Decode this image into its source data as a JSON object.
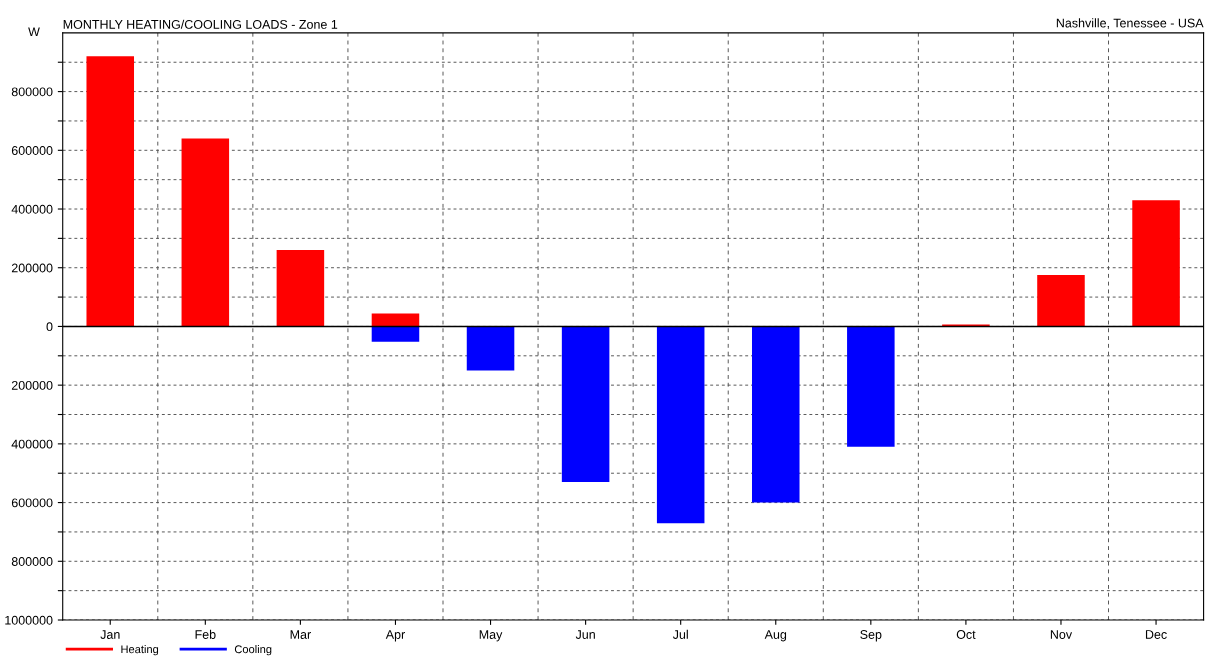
{
  "chart_data": {
    "type": "bar",
    "title": "MONTHLY HEATING/COOLING LOADS - Zone 1",
    "ylabel": "W",
    "annotations": [
      "Nashville, Tenessee - USA"
    ],
    "categories": [
      "Jan",
      "Feb",
      "Mar",
      "Apr",
      "May",
      "Jun",
      "Jul",
      "Aug",
      "Sep",
      "Oct",
      "Nov",
      "Dec"
    ],
    "series": [
      {
        "name": "Heating",
        "color": "#ff0000",
        "values": [
          920000,
          640000,
          260000,
          44000,
          null,
          null,
          null,
          null,
          null,
          7000,
          175000,
          430000
        ]
      },
      {
        "name": "Cooling",
        "color": "#0000ff",
        "values": [
          null,
          null,
          null,
          -52000,
          -150000,
          -530000,
          -670000,
          -600000,
          -410000,
          null,
          null,
          null
        ]
      }
    ],
    "ylim": [
      -1000000,
      1000000
    ],
    "yticks": [
      {
        "value": -1000000,
        "label": "1000000"
      },
      {
        "value": -900000,
        "label": null
      },
      {
        "value": -800000,
        "label": "800000"
      },
      {
        "value": -700000,
        "label": null
      },
      {
        "value": -600000,
        "label": "600000"
      },
      {
        "value": -500000,
        "label": null
      },
      {
        "value": -400000,
        "label": "400000"
      },
      {
        "value": -300000,
        "label": null
      },
      {
        "value": -200000,
        "label": "200000"
      },
      {
        "value": -100000,
        "label": null
      },
      0,
      {
        "value": 100000,
        "label": null
      },
      200000,
      {
        "value": 300000,
        "label": null
      },
      400000,
      {
        "value": 500000,
        "label": null
      },
      600000,
      {
        "value": 700000,
        "label": null
      },
      800000,
      {
        "value": 900000,
        "label": null
      }
    ],
    "grid": true,
    "legend": "bottom left"
  }
}
